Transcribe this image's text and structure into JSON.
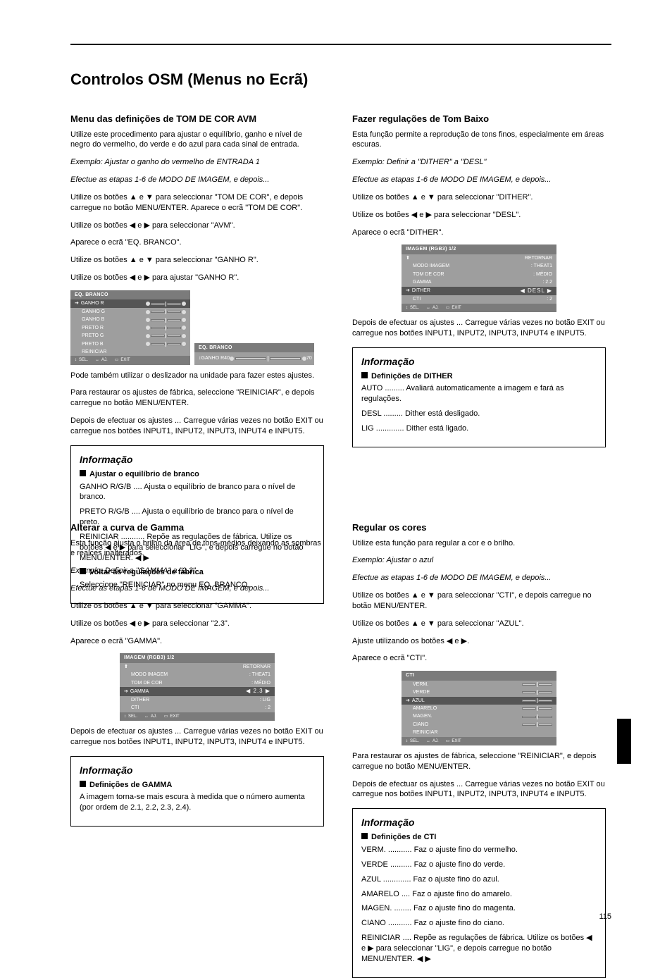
{
  "page": {
    "title": "Controlos OSM (Menus no Ecrã)",
    "page_number": "115"
  },
  "colors": {
    "osd_bg": "#9e9e9e",
    "osd_title": "#7b7b7b",
    "osd_sel": "#555555",
    "text": "#000000",
    "rule": "#000000"
  },
  "section_avm": {
    "heading": "Menu das definições de TOM DE COR AVM",
    "body1": "Utilize este procedimento para ajustar o equilíbrio, ganho e nível de negro do vermelho, do verde e do azul para cada sinal de entrada.",
    "example": "Exemplo: Ajustar o ganho do vermelho de ENTRADA 1",
    "body2": "Efectue as etapas 1-6 de MODO DE IMAGEM, e depois...",
    "step7": "Utilize os botões ▲ e ▼ para seleccionar \"TOM DE COR\", e depois carregue no botão MENU/ENTER. Aparece o ecrã \"TOM DE COR\".",
    "step8a": "Utilize os botões ◀ e ▶ para seleccionar \"AVM\".",
    "step8b": "Aparece o ecrã \"EQ. BRANCO\".",
    "step9": "Utilize os botões ▲ e ▼ para seleccionar \"GANHO R\".",
    "step10a": "Utilize os botões ◀ e ▶ para ajustar \"GANHO R\".",
    "step10b": "Pode também utilizar o deslizador na unidade para fazer estes ajustes.",
    "step10c": "Para restaurar os ajustes de fábrica, seleccione \"REINICIAR\", e depois carregue no botão MENU/ENTER.",
    "step11": "Depois de efectuar os ajustes ... Carregue várias vezes no botão EXIT ou carregue nos botões INPUT1, INPUT2, INPUT3, INPUT4 e INPUT5."
  },
  "osd_avm_main": {
    "title": "EQ. BRANCO",
    "rows": [
      "GANHO R",
      "GANHO G",
      "GANHO B",
      "PRETO R",
      "PRETO G",
      "PRETO B",
      "REINICIAR"
    ],
    "foot_sel": "SEL.",
    "foot_adj": "AJ.",
    "foot_exit": "EXIT",
    "foot_menu": "PROCEED"
  },
  "osd_avm_sub": {
    "title": "EQ. BRANCO",
    "label": "GANHO R",
    "val_lo": "40",
    "val_hi": "70",
    "foot_sel": "CIMA",
    "foot_adj": "AJ."
  },
  "info_avm": {
    "title": "Informação",
    "sub1": "Ajustar o equilíbrio de branco",
    "t1": "GANHO R/G/B .... Ajusta o equilíbrio de branco para o nível de branco.",
    "t2": "PRETO R/G/B .... Ajusta o equilíbrio de branco para o nível de preto.",
    "t3": "REINICIAR ........... Repõe as regulações de fábrica. Utilize os botões ◀ e ▶ para seleccionar \"LIG\", e depois carregue no botão MENU/ENTER.",
    "sub2": "Voltar às regulações de fábrica",
    "t4": "Seleccione \"REINICIAR\" no menu EQ. BRANCO."
  },
  "section_gamma": {
    "heading": "Alterar a curva de Gamma",
    "body1": "Esta função ajusta o brilho da área de tons-médios deixando as sombras e realces inalterados.",
    "example": "Exemplo: Definir a \"GAMMA\" a \"2.3\"",
    "body2": "Efectue as etapas 1-6 de MODO DE IMAGEM, e depois...",
    "step7a": "Utilize os botões ▲ e ▼ para seleccionar \"GAMMA\".",
    "step7b": "Utilize os botões ◀ e ▶ para seleccionar \"2.3\".",
    "step7c": "Aparece o ecrã \"GAMMA\".",
    "step8": "Depois de efectuar os ajustes ... Carregue várias vezes no botão EXIT ou carregue nos botões INPUT1, INPUT2, INPUT3, INPUT4 e INPUT5."
  },
  "osd_gamma": {
    "title": "IMAGEM   (RGB3)        1/2",
    "rows": [
      [
        "MODO IMAGEM",
        ": THEAT1"
      ],
      [
        "TOM DE COR",
        ": MÉDIO"
      ],
      [
        "GAMMA",
        "◀ 2.3 ▶"
      ],
      [
        "DITHER",
        ": LIG"
      ],
      [
        "CTI",
        ": 2"
      ]
    ],
    "ret": "RETORNAR",
    "foot_sel": "SEL.",
    "foot_adj": "AJ.",
    "foot_exit": "EXIT"
  },
  "info_gamma": {
    "title": "Informação",
    "sub": "Definições de GAMMA",
    "t": "A imagem torna-se mais escura à medida que o número aumenta (por ordem de 2.1, 2.2, 2.3, 2.4)."
  },
  "section_lowtone": {
    "heading": "Fazer regulações de Tom Baixo",
    "body1": "Esta função permite a reprodução de tons finos, especialmente em áreas escuras.",
    "example": "Exemplo: Definir a \"DITHER\" a \"DESL\"",
    "body2": "Efectue as etapas 1-6 de MODO DE IMAGEM, e depois...",
    "step7a": "Utilize os botões ▲ e ▼ para seleccionar \"DITHER\".",
    "step7b": "Utilize os botões ◀ e ▶ para seleccionar \"DESL\".",
    "step7c": "Aparece o ecrã \"DITHER\".",
    "step8": "Depois de efectuar os ajustes ... Carregue várias vezes no botão EXIT ou carregue nos botões INPUT1, INPUT2, INPUT3, INPUT4 e INPUT5."
  },
  "osd_lowtone": {
    "title": "IMAGEM   (RGB3)        1/2",
    "rows": [
      [
        "MODO IMAGEM",
        ": THEAT1"
      ],
      [
        "TOM DE COR",
        ": MÉDIO"
      ],
      [
        "GAMMA",
        ": 2.2"
      ],
      [
        "DITHER",
        "◀ DESL ▶"
      ],
      [
        "CTI",
        ": 2"
      ]
    ],
    "ret": "RETORNAR",
    "foot_sel": "SEL.",
    "foot_adj": "AJ.",
    "foot_exit": "EXIT"
  },
  "info_lowtone": {
    "title": "Informação",
    "sub": "Definições de DITHER",
    "t1": "AUTO ......... Avaliará automaticamente a imagem e fará as regulações.",
    "t2": "DESL ......... Dither está desligado.",
    "t3": "LIG ............. Dither está ligado."
  },
  "section_cti": {
    "heading": "Regular os cores",
    "body1": "Utilize esta função para regular a cor e o brilho.",
    "example": "Exemplo: Ajustar o azul",
    "body2": "Efectue as etapas 1-6 de MODO DE IMAGEM, e depois...",
    "step7a": "Utilize os botões ▲ e ▼ para seleccionar \"CTI\", e depois carregue no botão MENU/ENTER.",
    "step8a": "Utilize os botões ▲ e ▼ para seleccionar \"AZUL\".",
    "step9a": "Ajuste utilizando os botões ◀ e ▶.",
    "step9b": "Aparece o ecrã \"CTI\".",
    "step9c": "Para restaurar os ajustes de fábrica, seleccione \"REINICIAR\", e depois carregue no botão MENU/ENTER.",
    "step10": "Depois de efectuar os ajustes ... Carregue várias vezes no botão EXIT ou carregue nos botões INPUT1, INPUT2, INPUT3, INPUT4 e INPUT5."
  },
  "osd_cti": {
    "title": "CTI",
    "rows": [
      "VERM.",
      "VERDE",
      "AZUL",
      "AMARELO",
      "MAGEN.",
      "CIANO",
      "REINICIAR"
    ],
    "foot_sel": "SEL.",
    "foot_adj": "AJ.",
    "foot_exit": "EXIT",
    "foot_menu": "PROCEED"
  },
  "info_cti": {
    "title": "Informação",
    "sub": "Definições de CTI",
    "t1": "VERM. ........... Faz o ajuste fino do vermelho.",
    "t2": "VERDE .......... Faz o ajuste fino do verde.",
    "t3": "AZUL ............. Faz o ajuste fino do azul.",
    "t4": "AMARELO .... Faz o ajuste fino do amarelo.",
    "t5": "MAGEN. ........ Faz o ajuste fino do magenta.",
    "t6": "CIANO ........... Faz o ajuste fino do ciano.",
    "t7": "REINICIAR .... Repõe as regulações de fábrica. Utilize os botões ◀ e ▶ para seleccionar \"LIG\", e depois carregue no botão MENU/ENTER."
  }
}
